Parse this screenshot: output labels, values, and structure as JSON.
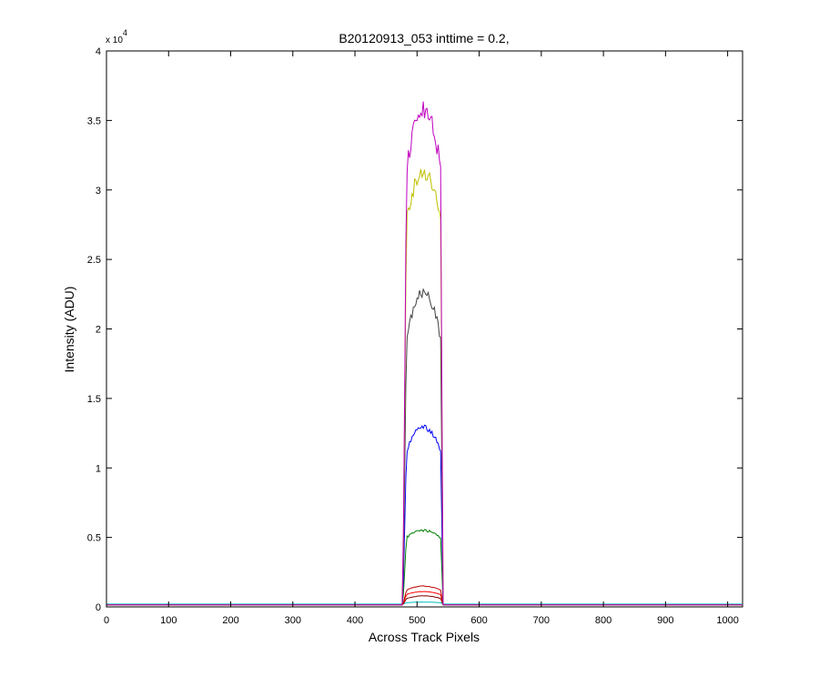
{
  "chart_data": {
    "type": "line",
    "title": "B20120913_053 inttime = 0.2,",
    "xlabel": "Across Track Pixels",
    "ylabel": "Intensity (ADU)",
    "y_exponent_label": "x 10",
    "y_exponent_power": "4",
    "xlim": [
      0,
      1024
    ],
    "ylim": [
      0,
      40000
    ],
    "x_ticks": [
      0,
      100,
      200,
      300,
      400,
      500,
      600,
      700,
      800,
      900,
      1000
    ],
    "x_tick_labels": [
      "0",
      "100",
      "200",
      "300",
      "400",
      "500",
      "600",
      "700",
      "800",
      "900",
      "1000"
    ],
    "y_ticks": [
      0,
      5000,
      10000,
      15000,
      20000,
      25000,
      30000,
      35000,
      40000
    ],
    "y_tick_labels": [
      "0",
      "0.5",
      "1",
      "1.5",
      "2",
      "2.5",
      "3",
      "3.5",
      "4"
    ],
    "grid": false,
    "legend": "none",
    "profile_shape": {
      "baseline_level": 150,
      "rise_start_x": 477,
      "plateau_start_x": 483,
      "plateau_end_x": 538,
      "fall_end_x": 542
    },
    "series": [
      {
        "color": "#00bfbf",
        "baseline": 200,
        "edge": 300,
        "peak": 350
      },
      {
        "color": "#800000",
        "baseline": 150,
        "edge": 600,
        "peak": 800
      },
      {
        "color": "#ff0000",
        "baseline": 150,
        "edge": 900,
        "peak": 1100
      },
      {
        "color": "#bf0000",
        "baseline": 150,
        "edge": 1200,
        "peak": 1500
      },
      {
        "color": "#008000",
        "baseline": 150,
        "edge": 5000,
        "peak": 5500
      },
      {
        "color": "#0000ff",
        "baseline": 150,
        "edge": 11200,
        "peak": 12900
      },
      {
        "color": "#404040",
        "baseline": 150,
        "edge": 19200,
        "peak": 22600
      },
      {
        "color": "#bfbf00",
        "baseline": 150,
        "edge": 27800,
        "peak": 31300
      },
      {
        "color": "#bf00bf",
        "baseline": 150,
        "edge": 31500,
        "peak": 35800
      }
    ]
  }
}
